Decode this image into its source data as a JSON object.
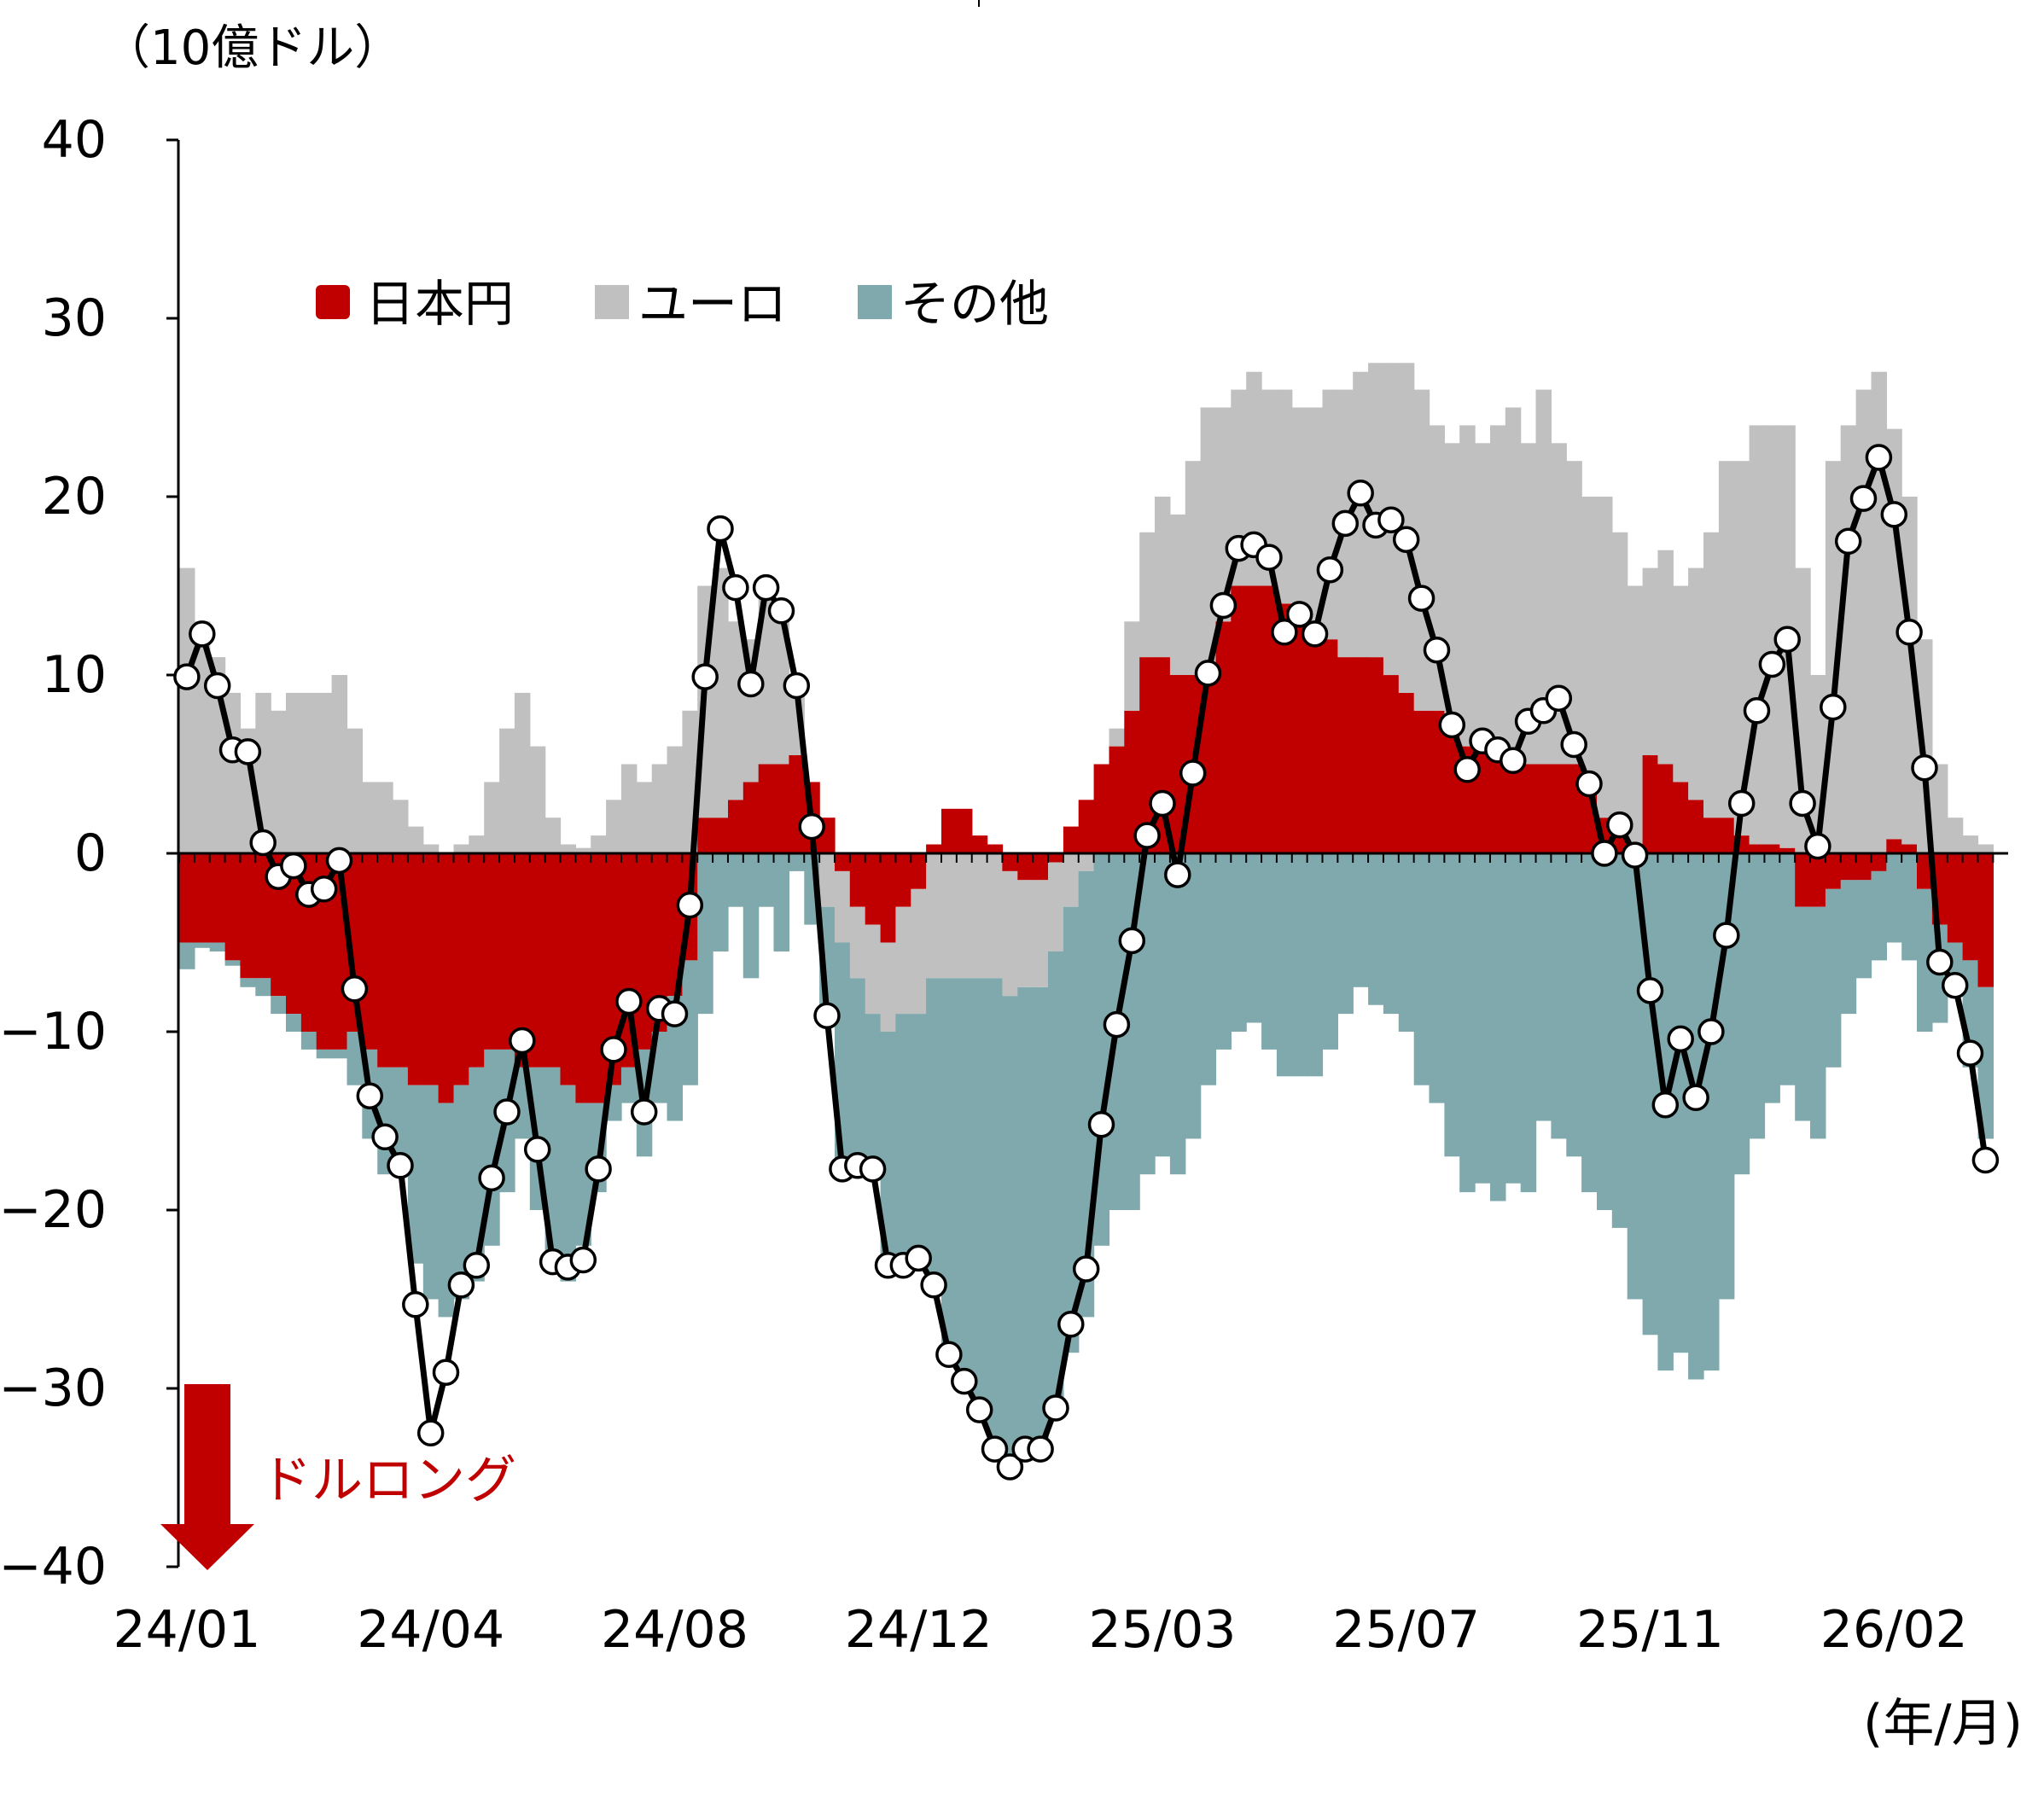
{
  "chart_data": {
    "type": "bar",
    "stacked": true,
    "unit_label": "（10億ドル）",
    "xlabel": "(年/月)",
    "ylim": [
      -40,
      40
    ],
    "yticks": [
      40,
      30,
      20,
      10,
      0,
      -10,
      -20,
      -30,
      -40
    ],
    "ytick_labels": [
      "40",
      "30",
      "20",
      "10",
      "0",
      "−10",
      "−20",
      "−30",
      "−40"
    ],
    "x_tick_labels": [
      "24/01",
      "24/04",
      "24/08",
      "24/12",
      "25/03",
      "25/07",
      "25/11",
      "26/02"
    ],
    "x_tick_every_n_weeks": 16,
    "legend_position": "top-left",
    "annotation": {
      "text": "ドルロング",
      "color": "#c00000"
    },
    "series": [
      {
        "name": "日本円",
        "color": "#c00000",
        "kind": "bar",
        "values": [
          -5,
          -5,
          -5,
          -6,
          -7,
          -7,
          -8,
          -9,
          -10,
          -11,
          -11,
          -10,
          -11,
          -12,
          -12,
          -13,
          -13,
          -14,
          -13,
          -12,
          -11,
          -11,
          -12,
          -12,
          -12,
          -13,
          -14,
          -14,
          -13,
          -12,
          -11,
          -10,
          -8,
          -6,
          2,
          2,
          3,
          4,
          5,
          5,
          5.5,
          4,
          2,
          -1,
          -3,
          -4,
          -5,
          -3,
          -2,
          0.5,
          2.5,
          2.5,
          1,
          0.5,
          -1,
          -1.5,
          -1.5,
          -0.5,
          1.5,
          3,
          5,
          6,
          8,
          11,
          11,
          10,
          10,
          10,
          13,
          15,
          15,
          15,
          14,
          13,
          12,
          12,
          11,
          11,
          11,
          10,
          9,
          8,
          8,
          7,
          6,
          6,
          6,
          5,
          5,
          5,
          5,
          5,
          4,
          2,
          1,
          0.5,
          5.5,
          5,
          4,
          3,
          2,
          2,
          1,
          0.5,
          0.5,
          0.3,
          -3,
          -3,
          -2,
          -1.5,
          -1.5,
          -1,
          0.8,
          0.5,
          -2,
          -4,
          -5,
          -6,
          -7.5
        ]
      },
      {
        "name": "ユーロ",
        "color": "#c0c0c0",
        "kind": "bar",
        "values": [
          16,
          13,
          11,
          9,
          7,
          9,
          8,
          9,
          9,
          9,
          10,
          7,
          4,
          4,
          3,
          1.5,
          0.5,
          0,
          0.5,
          1,
          4,
          7,
          9,
          6,
          2,
          0.5,
          0.3,
          1,
          3,
          5,
          4,
          5,
          6,
          8,
          13,
          14,
          10,
          8,
          10,
          9,
          3.5,
          0,
          -3,
          -4,
          -4,
          -5,
          -5,
          -6,
          -7,
          -7,
          -7,
          -7,
          -7,
          -7,
          -7,
          -6,
          -6,
          -5,
          -3,
          -1,
          0,
          1,
          5,
          7,
          9,
          9,
          12,
          15,
          12,
          11,
          12,
          11,
          12,
          12,
          13,
          14,
          15,
          16,
          16.5,
          17.5,
          18.5,
          18,
          16,
          16,
          18,
          17,
          18,
          20,
          18,
          21,
          18,
          17,
          16,
          18,
          17,
          14.5,
          10.5,
          12,
          11,
          13,
          16,
          20,
          21,
          23.5,
          23.5,
          23.7,
          16,
          10,
          22,
          24,
          26,
          27,
          23,
          19.5,
          12,
          5,
          2,
          1,
          0.5
        ]
      },
      {
        "name": "その他",
        "color": "#7fa9ac",
        "kind": "bar",
        "values": [
          -1.5,
          -0.3,
          -0.5,
          -0.3,
          -0.5,
          -1,
          -1,
          -1,
          -1,
          -0.5,
          -0.5,
          -3,
          -5,
          -6,
          -6,
          -10,
          -12,
          -12,
          -12,
          -12,
          -11,
          -8,
          -4,
          -8,
          -11.5,
          -11,
          -8,
          -5,
          -2,
          -2,
          -6,
          -4,
          -7,
          -7,
          -9,
          -5.5,
          -3,
          -7,
          -3,
          -5.5,
          -1,
          -4,
          -6.6,
          -13.2,
          -11,
          -9.2,
          -13.6,
          -14.6,
          -14.2,
          -17.7,
          -21.6,
          -23.1,
          -24.7,
          -26.9,
          -26.9,
          -26.4,
          -26.4,
          -26.1,
          -25,
          -25,
          -22,
          -20,
          -20,
          -18,
          -17,
          -18,
          -16,
          -13,
          -11,
          -10,
          -9.5,
          -11,
          -12.5,
          -12.5,
          -12.5,
          -11,
          -9,
          -7.5,
          -8.5,
          -9,
          -10,
          -13,
          -14,
          -17,
          -19,
          -18.5,
          -19.5,
          -18.5,
          -19,
          -15,
          -16,
          -17,
          -19,
          -20,
          -21,
          -25,
          -27,
          -29,
          -28,
          -29.5,
          -29,
          -25,
          -18,
          -16,
          -14,
          -13,
          -12,
          -13,
          -10,
          -7.5,
          -5.5,
          -5,
          -5,
          -6,
          -8,
          -5.5,
          -3,
          -6,
          -8.5
        ]
      },
      {
        "kind": "line",
        "color": "#000000",
        "values": [
          9.9,
          12.3,
          9.4,
          5.8,
          5.7,
          0.6,
          -1.3,
          -0.7,
          -2.3,
          -2.0,
          -0.4,
          -7.6,
          -13.6,
          -15.9,
          -17.5,
          -25.3,
          -32.5,
          -29.1,
          -24.2,
          -23.1,
          -18.2,
          -14.5,
          -10.5,
          -16.6,
          -22.9,
          -23.2,
          -22.8,
          -17.7,
          -11.0,
          -8.3,
          -14.5,
          -8.7,
          -9.0,
          -2.9,
          9.9,
          18.2,
          14.9,
          9.5,
          14.9,
          13.6,
          9.4,
          1.5,
          -9.1,
          -17.7,
          -17.5,
          -17.7,
          -23.1,
          -23.1,
          -22.7,
          -24.2,
          -28.1,
          -29.6,
          -31.2,
          -33.4,
          -34.4,
          -33.4,
          -33.4,
          -31.1,
          -26.4,
          -23.3,
          -15.2,
          -9.6,
          -4.9,
          1.0,
          2.8,
          -1.2,
          4.5,
          10.1,
          13.9,
          17.1,
          17.3,
          16.6,
          12.4,
          13.4,
          12.3,
          15.9,
          18.5,
          20.2,
          18.4,
          18.7,
          17.6,
          14.3,
          11.4,
          7.2,
          4.7,
          6.3,
          5.8,
          5.2,
          7.4,
          8.0,
          8.7,
          6.1,
          3.9,
          0.0,
          1.6,
          -0.1,
          -7.7,
          -14.1,
          -10.4,
          -13.7,
          -10.0,
          -4.6,
          2.8,
          8.0,
          10.6,
          12.0,
          2.8,
          0.4,
          8.2,
          17.5,
          19.9,
          22.2,
          19.0,
          12.4,
          4.8,
          -6.1,
          -7.4,
          -11.2,
          -17.2
        ]
      }
    ]
  }
}
